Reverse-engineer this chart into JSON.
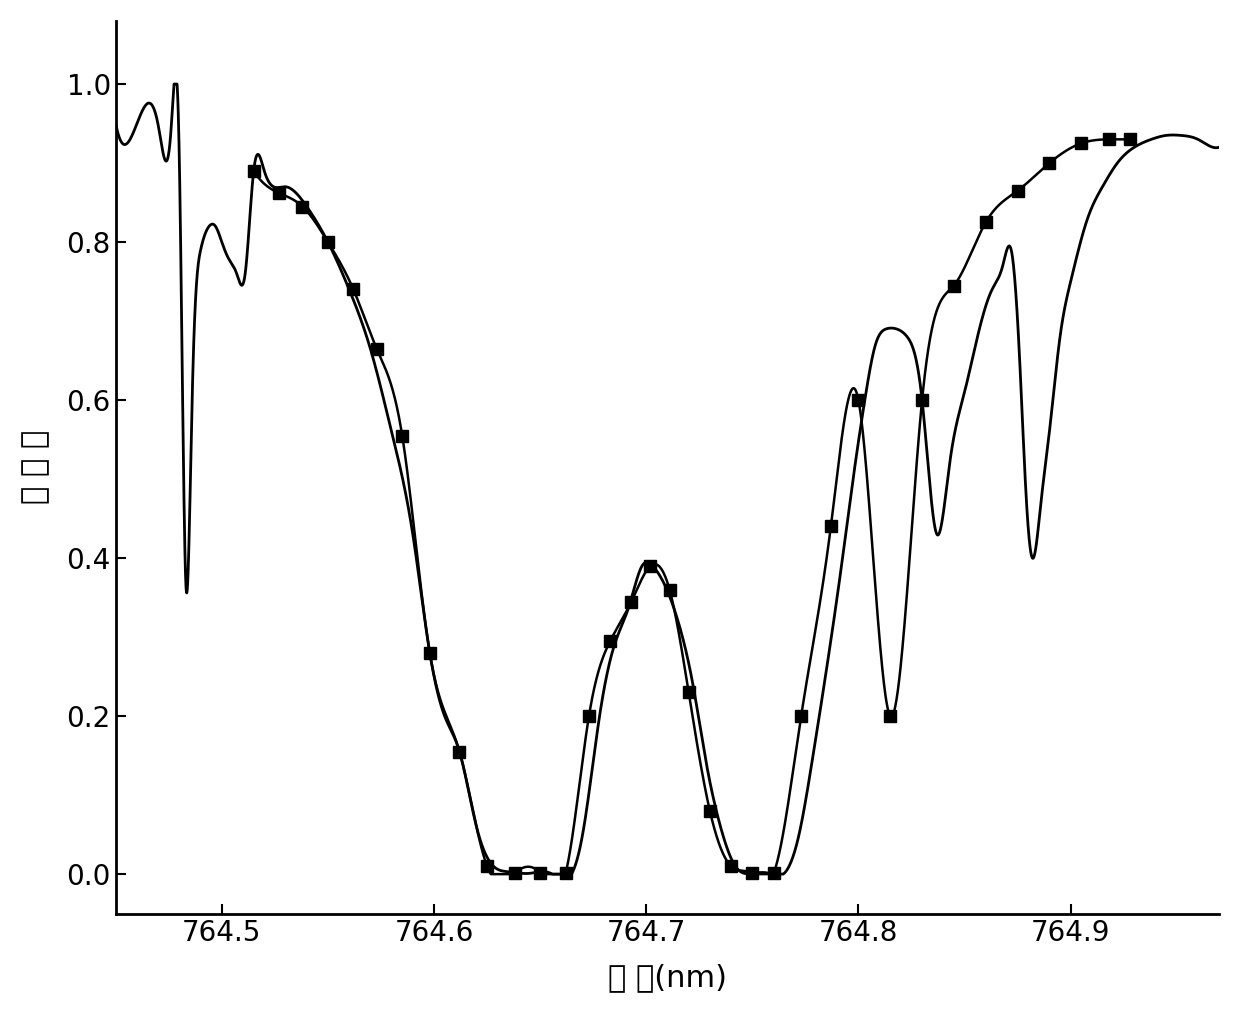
{
  "title": "",
  "xlabel": "波 长(nm)",
  "ylabel": "透 过 率",
  "xlim": [
    764.45,
    764.97
  ],
  "ylim": [
    -0.05,
    1.08
  ],
  "yticks": [
    0.0,
    0.2,
    0.4,
    0.6,
    0.8,
    1.0
  ],
  "xticks": [
    764.5,
    764.6,
    764.7,
    764.8,
    764.9
  ],
  "background_color": "#ffffff",
  "line_color": "#000000",
  "marker_color": "#000000",
  "xlabel_fontsize": 22,
  "ylabel_fontsize": 22,
  "tick_fontsize": 20,
  "smooth_x": [
    764.45,
    764.46,
    764.47,
    764.476,
    764.48,
    764.483,
    764.486,
    764.49,
    764.494,
    764.497,
    764.5,
    764.503,
    764.507,
    764.511,
    764.515,
    764.52,
    764.53,
    764.54,
    764.55,
    764.56,
    764.57,
    764.58,
    764.59,
    764.598,
    764.605,
    764.612,
    764.62,
    764.628,
    764.635,
    764.645,
    764.655,
    764.665,
    764.67,
    764.678,
    764.685,
    764.692,
    764.698,
    764.703,
    764.708,
    764.715,
    764.722,
    764.728,
    764.735,
    764.742,
    764.75,
    764.758,
    764.765,
    764.772,
    764.778,
    764.785,
    764.792,
    764.798,
    764.803,
    764.808,
    764.813,
    764.818,
    764.823,
    764.83,
    764.837,
    764.843,
    764.85,
    764.857,
    764.863,
    764.868,
    764.872,
    764.876,
    764.879,
    764.882,
    764.886,
    764.89,
    764.895,
    764.9,
    764.908,
    764.915,
    764.922,
    764.93,
    764.938,
    764.945,
    764.952,
    764.96,
    764.967,
    764.97
  ],
  "smooth_y": [
    0.95,
    0.95,
    0.948,
    0.94,
    0.9,
    0.37,
    0.6,
    0.79,
    0.82,
    0.82,
    0.8,
    0.78,
    0.76,
    0.76,
    0.89,
    0.89,
    0.87,
    0.845,
    0.8,
    0.74,
    0.665,
    0.56,
    0.43,
    0.28,
    0.2,
    0.155,
    0.06,
    0.01,
    0.003,
    0.001,
    0.001,
    0.001,
    0.05,
    0.2,
    0.29,
    0.34,
    0.39,
    0.39,
    0.37,
    0.32,
    0.24,
    0.145,
    0.06,
    0.01,
    0.001,
    0.001,
    0.001,
    0.05,
    0.14,
    0.26,
    0.39,
    0.51,
    0.6,
    0.67,
    0.69,
    0.69,
    0.68,
    0.6,
    0.43,
    0.52,
    0.61,
    0.69,
    0.74,
    0.77,
    0.79,
    0.65,
    0.48,
    0.4,
    0.47,
    0.56,
    0.68,
    0.75,
    0.83,
    0.87,
    0.9,
    0.92,
    0.93,
    0.935,
    0.935,
    0.93,
    0.92,
    0.92
  ],
  "marker_x": [
    764.515,
    764.527,
    764.538,
    764.55,
    764.562,
    764.573,
    764.585,
    764.598,
    764.612,
    764.625,
    764.638,
    764.65,
    764.662,
    764.673,
    764.683,
    764.693,
    764.702,
    764.711,
    764.72,
    764.73,
    764.74,
    764.75,
    764.76,
    764.773,
    764.787,
    764.8,
    764.815,
    764.83,
    764.845,
    764.86,
    764.875,
    764.89,
    764.905,
    764.918,
    764.928
  ],
  "marker_y": [
    0.89,
    0.862,
    0.845,
    0.8,
    0.74,
    0.665,
    0.555,
    0.28,
    0.155,
    0.01,
    0.002,
    0.001,
    0.001,
    0.2,
    0.295,
    0.345,
    0.39,
    0.36,
    0.23,
    0.08,
    0.01,
    0.001,
    0.001,
    0.2,
    0.44,
    0.6,
    0.2,
    0.6,
    0.745,
    0.825,
    0.865,
    0.9,
    0.925,
    0.93,
    0.93
  ]
}
